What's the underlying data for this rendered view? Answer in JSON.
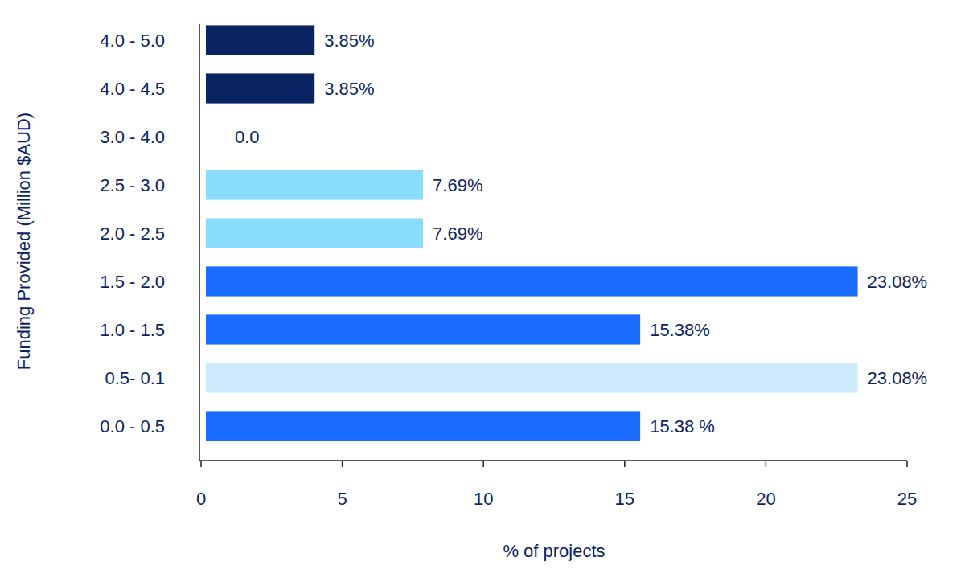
{
  "chart_data": {
    "type": "bar",
    "orientation": "horizontal",
    "xlabel": "% of projects",
    "ylabel": "Funding Provided (Million $AUD)",
    "categories": [
      "0.0 - 0.5",
      "0.5- 0.1",
      "1.0 - 1.5",
      "1.5 - 2.0",
      "2.0 - 2.5",
      "2.5 - 3.0",
      "3.0 - 4.0",
      "4.0 - 4.5",
      "4.0 - 5.0"
    ],
    "values": [
      15.38,
      23.08,
      15.38,
      23.08,
      7.69,
      7.69,
      0,
      3.85,
      3.85
    ],
    "value_labels": [
      "15.38 %",
      "23.08%",
      "15.38%",
      "23.08%",
      "7.69%",
      "7.69%",
      "0.0",
      "3.85%",
      "3.85%"
    ],
    "colors": [
      "#1a6bff",
      "#cdebfd",
      "#1a6bff",
      "#1a6bff",
      "#8addff",
      "#8addff",
      "#1a6bff",
      "#0a2463",
      "#0a2463"
    ],
    "xlim": [
      0,
      25
    ],
    "xticks": [
      0,
      5,
      10,
      15,
      20,
      25
    ],
    "grid": false,
    "data_labels": true
  }
}
